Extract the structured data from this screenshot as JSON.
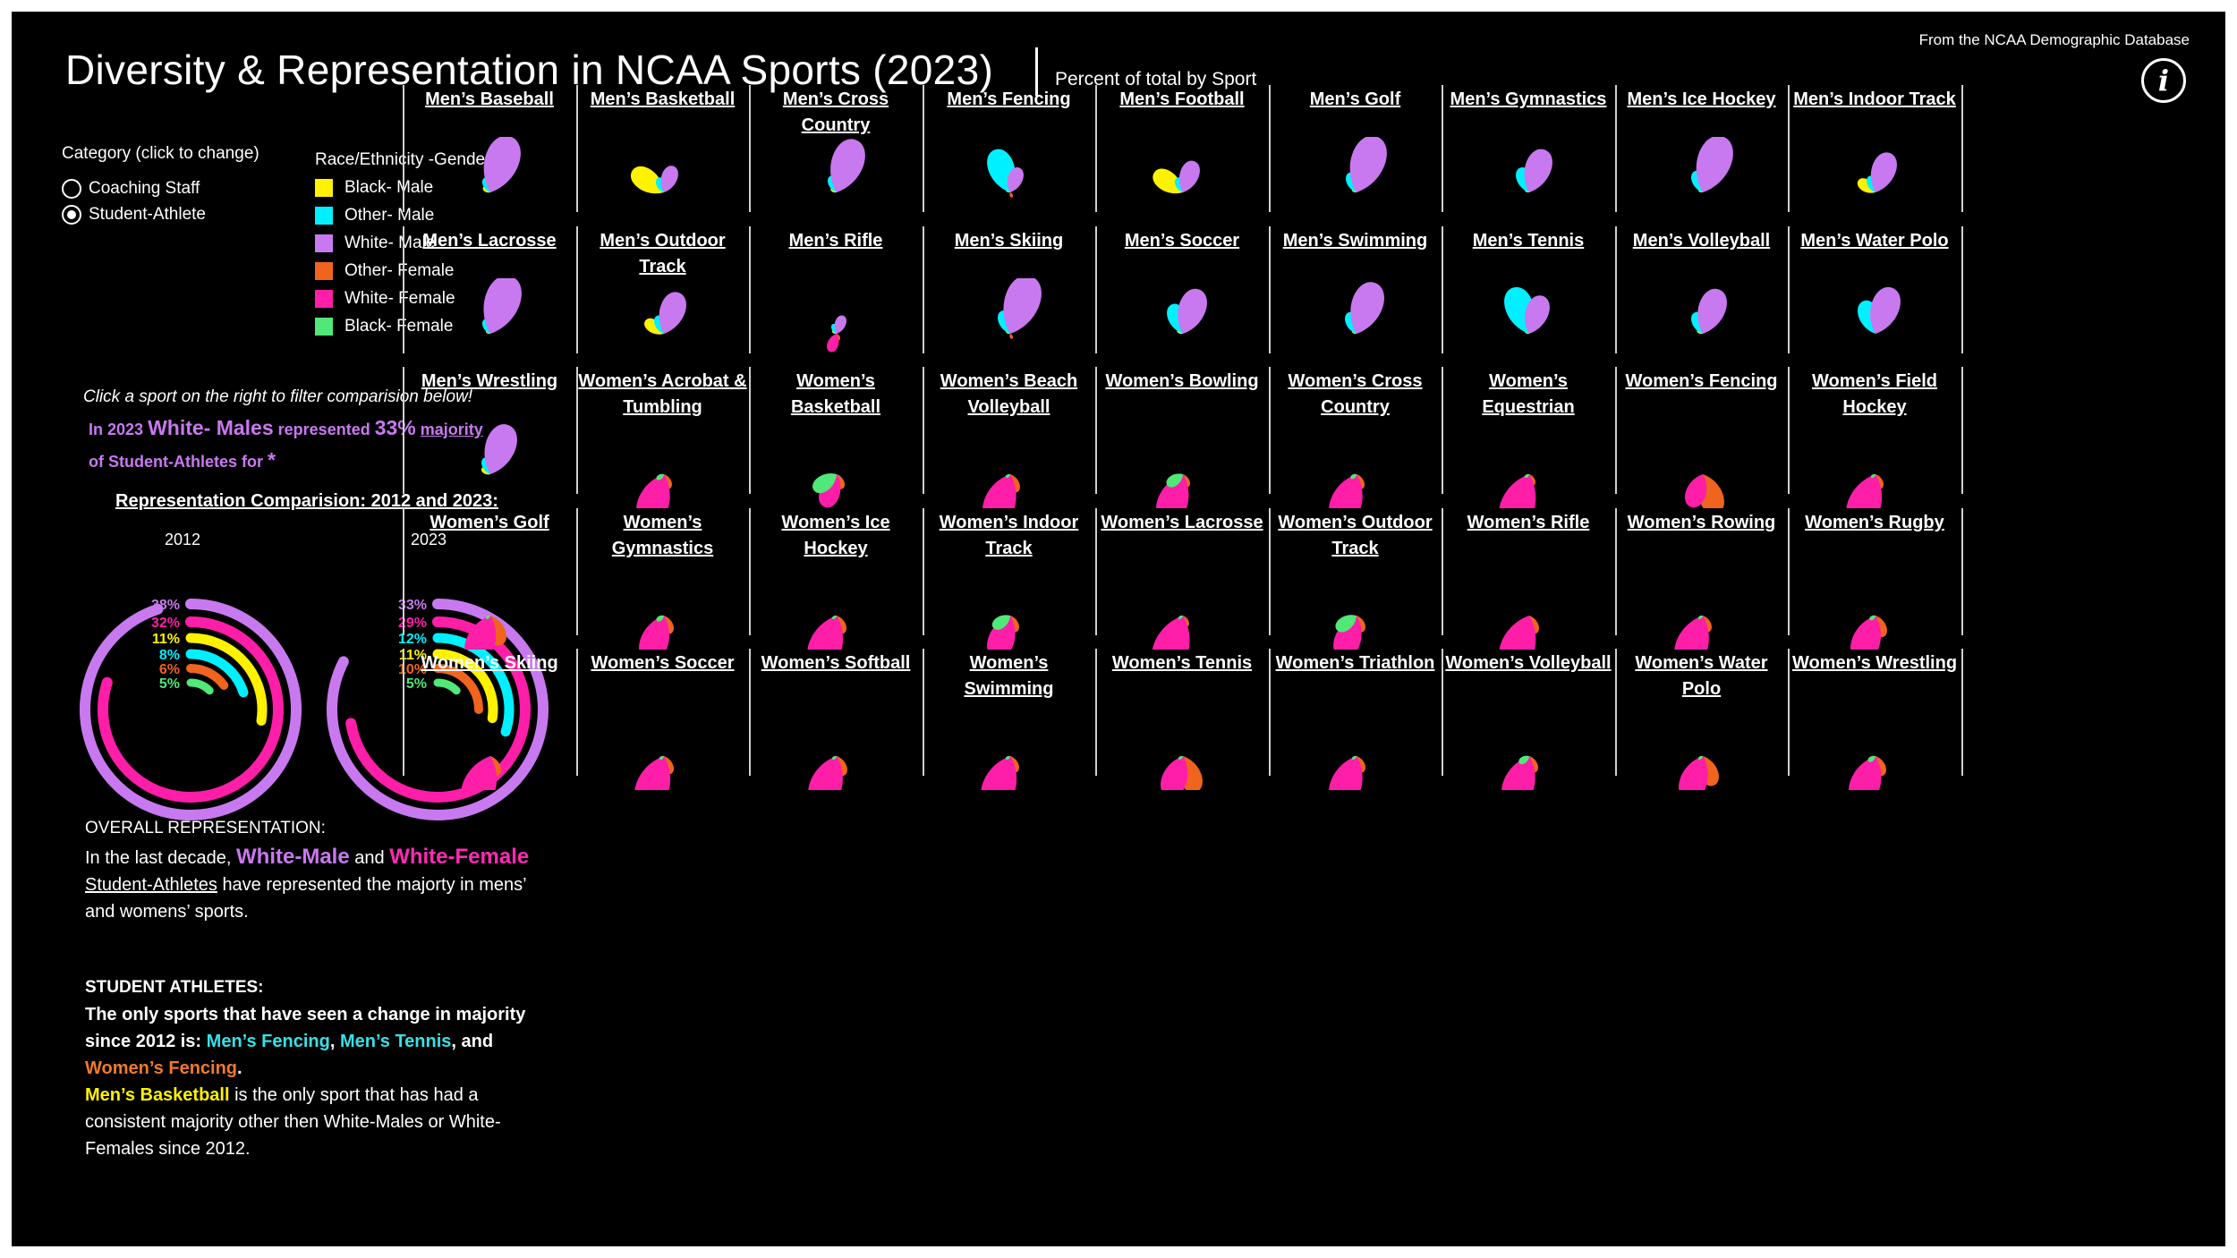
{
  "header": {
    "title": "Diversity & Representation in NCAA Sports (2023)",
    "subtitle": "Percent of total by Sport",
    "source": "From the  NCAA Demographic Database",
    "info_icon": "info-icon"
  },
  "category": {
    "label": "Category (click to change)",
    "options": [
      {
        "label": "Coaching Staff",
        "checked": false
      },
      {
        "label": "Student-Athlete",
        "checked": true
      }
    ]
  },
  "legend": {
    "title": "Race/Ethnicity -Gender",
    "items": [
      {
        "label": "Black- Male",
        "color": "#fff200"
      },
      {
        "label": "Other- Male",
        "color": "#00f0ff"
      },
      {
        "label": "White- Male",
        "color": "#c879f0"
      },
      {
        "label": "Other- Female",
        "color": "#f0641e"
      },
      {
        "label": "White- Female",
        "color": "#ff1ea8"
      },
      {
        "label": "Black- Female",
        "color": "#50e878"
      }
    ]
  },
  "filter": {
    "hint": "Click a sport on the right  to filter comparision below!",
    "in_year": "In 2023",
    "group": "White- Males",
    "represented": "represented",
    "percent": "33%",
    "majority": " majority",
    "of_text": "of  Student-Athletes for",
    "sport": "*"
  },
  "comparison": {
    "title": "Representation Comparision: 2012 and 2023:",
    "year_2012": "2012",
    "year_2023": "2023"
  },
  "overall": {
    "head": "OVERALL REPRESENTATION:",
    "p1": "In the last decade,",
    "white_male": "White-Male",
    "and": "and",
    "white_female": "White-Female",
    "student_athletes": "Student-Athletes",
    "p2": "have represented the majorty in mens’ and womens’ sports."
  },
  "student_athletes": {
    "head": "STUDENT ATHLETES:",
    "p1": "The only sports that have seen a change in majority since 2012 is:",
    "s1": "Men’s Fencing",
    "comma": ",",
    "s2": "Men’s Tennis",
    "and": ", and",
    "s3": "Women’s Fencing",
    "period": ".",
    "s4": "Men’s Basketball",
    "p2": "is the only sport that has had a consistent majority other then White-Males or White-Females since 2012."
  },
  "chart_data": [
    {
      "type": "radial-bar",
      "title": "2012",
      "series": [
        {
          "name": "White- Male",
          "value": 38
        },
        {
          "name": "White- Female",
          "value": 32
        },
        {
          "name": "Black- Male",
          "value": 11
        },
        {
          "name": "Other- Male",
          "value": 8
        },
        {
          "name": "Other- Female",
          "value": 6
        },
        {
          "name": "Black- Female",
          "value": 5
        }
      ],
      "labels": [
        "38%",
        "32%",
        "11%",
        "8%",
        "6%",
        "5%"
      ]
    },
    {
      "type": "radial-bar",
      "title": "2023",
      "series": [
        {
          "name": "White- Male",
          "value": 33
        },
        {
          "name": "White- Female",
          "value": 29
        },
        {
          "name": "Other- Male",
          "value": 12
        },
        {
          "name": "Black- Male",
          "value": 11
        },
        {
          "name": "Other- Female",
          "value": 10
        },
        {
          "name": "Black- Female",
          "value": 5
        }
      ],
      "labels": [
        "33%",
        "29%",
        "12%",
        "11%",
        "10%",
        "5%"
      ]
    },
    {
      "type": "petal-grid",
      "series_order": [
        "Black- Male",
        "Other- Male",
        "White- Male",
        "Other- Female",
        "White- Female",
        "Black- Female"
      ],
      "sports": [
        {
          "name": "Men’s Baseball",
          "values": [
            5,
            9,
            34,
            0,
            0,
            0
          ]
        },
        {
          "name": "Men’s Basketball",
          "values": [
            22,
            9,
            16,
            0,
            0,
            0
          ]
        },
        {
          "name": "Men’s Cross Country",
          "values": [
            4,
            10,
            32,
            0,
            0,
            0
          ]
        },
        {
          "name": "Men’s Fencing",
          "values": [
            1,
            26,
            15,
            1,
            0,
            0
          ]
        },
        {
          "name": "Men’s Football",
          "values": [
            20,
            9,
            19,
            0,
            0,
            0
          ]
        },
        {
          "name": "Men’s Golf",
          "values": [
            1,
            12,
            34,
            0,
            0,
            0
          ]
        },
        {
          "name": "Men’s Gymnastics",
          "values": [
            1,
            15,
            26,
            0,
            0,
            0
          ]
        },
        {
          "name": "Men’s Ice Hockey",
          "values": [
            1,
            13,
            34,
            0,
            0,
            0
          ]
        },
        {
          "name": "Men’s Indoor Track",
          "values": [
            12,
            10,
            24,
            0,
            0,
            0
          ]
        },
        {
          "name": "Men’s Lacrosse",
          "values": [
            3,
            9,
            35,
            0,
            0,
            0
          ]
        },
        {
          "name": "Men’s Outdoor Track",
          "values": [
            13,
            11,
            25,
            0,
            0,
            0
          ]
        },
        {
          "name": "Men’s Rifle",
          "values": [
            1,
            6,
            11,
            4,
            11,
            0
          ]
        },
        {
          "name": "Men’s Skiing",
          "values": [
            1,
            14,
            35,
            2,
            0,
            0
          ]
        },
        {
          "name": "Men’s Soccer",
          "values": [
            4,
            18,
            27,
            0,
            0,
            0
          ]
        },
        {
          "name": "Men’s Swimming",
          "values": [
            1,
            13,
            31,
            0,
            0,
            0
          ]
        },
        {
          "name": "Men’s Tennis",
          "values": [
            1,
            28,
            23,
            0,
            0,
            0
          ]
        },
        {
          "name": "Men’s Volleyball",
          "values": [
            4,
            13,
            27,
            0,
            0,
            0
          ]
        },
        {
          "name": "Men’s Water Polo",
          "values": [
            0,
            20,
            28,
            0,
            0,
            0
          ]
        },
        {
          "name": "Men’s Wrestling",
          "values": [
            6,
            10,
            30,
            0,
            0,
            0
          ]
        },
        {
          "name": "Women’s Acrobat & Tumbling",
          "values": [
            0,
            0,
            0,
            9,
            31,
            5
          ]
        },
        {
          "name": "Women’s Basketball",
          "values": [
            0,
            0,
            0,
            9,
            20,
            16
          ]
        },
        {
          "name": "Women’s Beach Volleyball",
          "values": [
            0,
            0,
            0,
            11,
            31,
            2
          ]
        },
        {
          "name": "Women’s Bowling",
          "values": [
            0,
            0,
            0,
            8,
            30,
            11
          ]
        },
        {
          "name": "Women’s Cross Country",
          "values": [
            0,
            0,
            0,
            9,
            31,
            4
          ]
        },
        {
          "name": "Women’s Equestrian",
          "values": [
            0,
            0,
            0,
            7,
            34,
            1
          ]
        },
        {
          "name": "Women’s Fencing",
          "values": [
            0,
            0,
            0,
            24,
            20,
            0
          ]
        },
        {
          "name": "Women’s Field Hockey",
          "values": [
            0,
            0,
            0,
            9,
            33,
            2
          ]
        },
        {
          "name": "Women’s Golf",
          "values": [
            0,
            0,
            0,
            18,
            29,
            1
          ]
        },
        {
          "name": "Women’s Gymnastics",
          "values": [
            0,
            0,
            0,
            11,
            28,
            5
          ]
        },
        {
          "name": "Women’s Ice Hockey",
          "values": [
            0,
            0,
            0,
            11,
            33,
            1
          ]
        },
        {
          "name": "Women’s Indoor Track",
          "values": [
            0,
            0,
            0,
            10,
            26,
            12
          ]
        },
        {
          "name": "Women’s Lacrosse",
          "values": [
            0,
            0,
            0,
            7,
            35,
            2
          ]
        },
        {
          "name": "Women’s Outdoor Track",
          "values": [
            0,
            0,
            0,
            10,
            26,
            14
          ]
        },
        {
          "name": "Women’s Rifle",
          "values": [
            0,
            0,
            0,
            11,
            34,
            0
          ]
        },
        {
          "name": "Women’s Rowing",
          "values": [
            0,
            0,
            0,
            10,
            32,
            2
          ]
        },
        {
          "name": "Women’s Rugby",
          "values": [
            0,
            0,
            0,
            13,
            28,
            4
          ]
        },
        {
          "name": "Women’s Skiing",
          "values": [
            0,
            0,
            0,
            12,
            33,
            0
          ]
        },
        {
          "name": "Women’s Soccer",
          "values": [
            0,
            0,
            0,
            11,
            33,
            3
          ]
        },
        {
          "name": "Women’s Softball",
          "values": [
            0,
            0,
            0,
            12,
            32,
            2
          ]
        },
        {
          "name": "Women’s Swimming",
          "values": [
            0,
            0,
            0,
            10,
            33,
            2
          ]
        },
        {
          "name": "Women’s Tennis",
          "values": [
            0,
            0,
            0,
            22,
            25,
            1
          ]
        },
        {
          "name": "Women’s Triathlon",
          "values": [
            0,
            0,
            0,
            10,
            31,
            3
          ]
        },
        {
          "name": "Women’s Volleyball",
          "values": [
            0,
            0,
            0,
            10,
            31,
            7
          ]
        },
        {
          "name": "Women’s Water Polo",
          "values": [
            0,
            0,
            0,
            18,
            27,
            1
          ]
        },
        {
          "name": "Women’s Wrestling",
          "values": [
            0,
            0,
            0,
            12,
            30,
            5
          ]
        }
      ]
    }
  ]
}
